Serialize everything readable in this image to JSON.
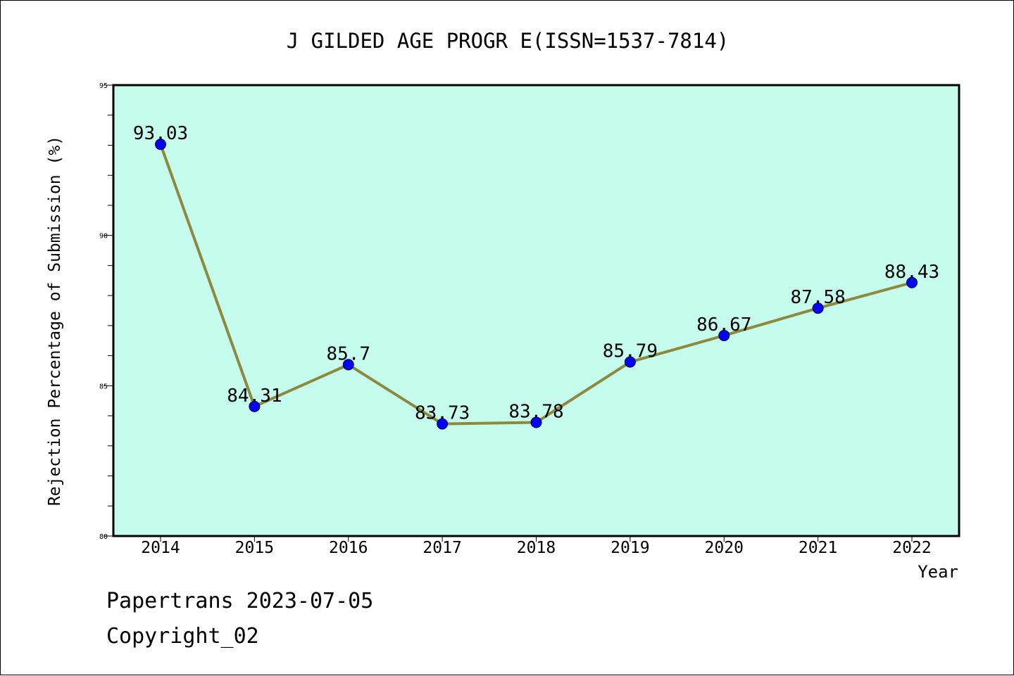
{
  "chart_data": {
    "type": "line",
    "title": "J GILDED AGE PROGR E(ISSN=1537-7814)",
    "xlabel": "Year",
    "ylabel": "Rejection Percentage of Submission (%)",
    "x": [
      "2014",
      "2015",
      "2016",
      "2017",
      "2018",
      "2019",
      "2020",
      "2021",
      "2022"
    ],
    "series": [
      {
        "values": [
          93.03,
          84.31,
          85.7,
          83.73,
          83.78,
          85.79,
          86.67,
          87.58,
          88.43
        ],
        "labels": [
          "93.03",
          "84.31",
          "85.7",
          "83.73",
          "83.78",
          "85.79",
          "86.67",
          "87.58",
          "88.43"
        ]
      }
    ],
    "ylim": [
      80,
      95
    ],
    "yticks": [
      "80",
      "85",
      "90",
      "95"
    ],
    "grid": false,
    "colors": {
      "plot_background": "#c6fcee",
      "line": "#8c8a3c",
      "marker": "#0000ff"
    }
  },
  "footer": {
    "line1": "Papertrans 2023-07-05",
    "line2": "Copyright_02"
  }
}
